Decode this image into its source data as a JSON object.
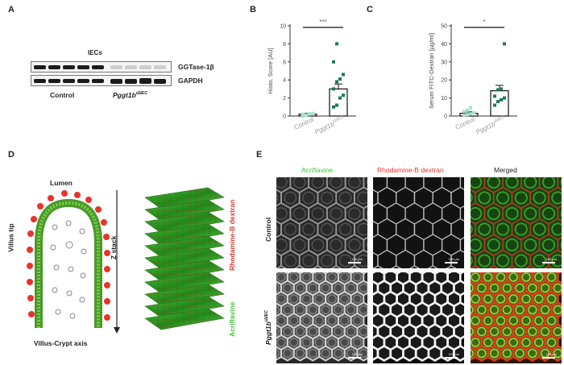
{
  "panels": {
    "a": "A",
    "b": "B",
    "c": "C",
    "d": "D",
    "e": "E"
  },
  "panel_a": {
    "title": "IECs",
    "band1_label": "GGTase-1β",
    "band2_label": "GAPDH",
    "group_control": "Control",
    "group_ko": "Pggt1b",
    "group_ko_sup": "iΔIEC"
  },
  "chart_data": [
    {
      "type": "bar",
      "panel": "B",
      "ylabel": "Histo. Score [AU]",
      "ylim": [
        0,
        10
      ],
      "yticks": [
        0,
        2,
        4,
        6,
        8,
        10
      ],
      "categories": [
        "Control",
        "Pggt1b iΔIEC"
      ],
      "category_base": [
        "Control",
        "Pggt1b"
      ],
      "category_sup": [
        "",
        "iΔIEC"
      ],
      "values": [
        0.2,
        3.0
      ],
      "error": [
        0.1,
        0.55
      ],
      "points": [
        [
          0.0,
          0.1,
          0.2,
          0.3,
          0.2,
          0.1,
          0.25
        ],
        [
          1.0,
          1.2,
          2.0,
          2.3,
          3.0,
          3.8,
          4.1,
          4.6,
          6.0,
          8.0
        ]
      ],
      "significance": "***",
      "colors": {
        "control": "#a8e4d2",
        "ko": "#1e7a5a"
      }
    },
    {
      "type": "bar",
      "panel": "C",
      "ylabel": "Serum FITC-Dextran [µg/ml]",
      "ylim": [
        0,
        50
      ],
      "yticks": [
        0,
        10,
        20,
        30,
        40,
        50
      ],
      "categories": [
        "Control",
        "Pggt1b iΔIEC"
      ],
      "category_base": [
        "Control",
        "Pggt1b"
      ],
      "category_sup": [
        "",
        "iΔIEC"
      ],
      "values": [
        1.5,
        14.0
      ],
      "error": [
        0.8,
        3.0
      ],
      "points": [
        [
          0.3,
          0.8,
          1.2,
          1.8,
          2.5,
          3.2,
          4.5
        ],
        [
          6.0,
          8.0,
          9.0,
          10.0,
          11.0,
          14.5,
          15.0,
          40.0
        ]
      ],
      "significance": "*",
      "colors": {
        "control": "#a8e4d2",
        "ko": "#1e7a5a"
      }
    }
  ],
  "panel_d": {
    "lumen": "Lumen",
    "villus_tip": "Villus tip",
    "axis": "Villus-Crypt axis",
    "zstack": "Z stack",
    "rhodamine": "Rhodamine-B dextran",
    "acriflavine": "Acriflavine",
    "colors": {
      "red": "#e8342a",
      "green": "#3cc832"
    }
  },
  "panel_e": {
    "col_acriflavine": "Acriflavine",
    "col_rhodamine": "Rhodamine-B dextran",
    "col_merged": "Merged",
    "row_control": "Control",
    "row_ko": "Pggt1b",
    "row_ko_sup": "iΔIEC",
    "scale": "100 µm"
  }
}
